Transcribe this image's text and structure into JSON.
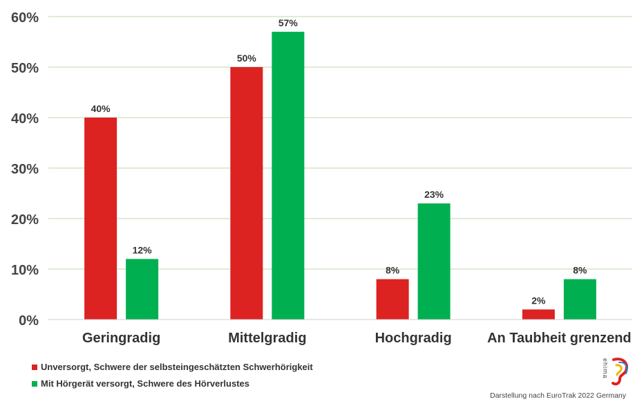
{
  "chart_data": {
    "type": "bar",
    "categories": [
      "Geringradig",
      "Mittelgradig",
      "Hochgradig",
      "An Taubheit grenzend"
    ],
    "series": [
      {
        "name": "Unversorgt, Schwere der selbsteingeschätzten Schwerhörigkeit",
        "values": [
          40,
          50,
          8,
          2
        ],
        "color": "#dd2222"
      },
      {
        "name": "Mit Hörgerät versorgt, Schwere des Hörverlustes",
        "values": [
          12,
          57,
          23,
          8
        ],
        "color": "#00b050"
      }
    ],
    "data_labels": [
      [
        "40%",
        "50%",
        "8%",
        "2%"
      ],
      [
        "12%",
        "57%",
        "23%",
        "8%"
      ]
    ],
    "yticks": [
      0,
      10,
      20,
      30,
      40,
      50,
      60
    ],
    "ytick_labels": [
      "0%",
      "10%",
      "20%",
      "30%",
      "40%",
      "50%",
      "60%"
    ],
    "ylim": [
      0,
      60
    ],
    "grid": true,
    "grid_color": "#bcd9a8",
    "legend_position": "bottom-left"
  },
  "source_note": "Darstellung nach EuroTrak 2022 Germany",
  "logo": {
    "text": "ehima",
    "icon": "ear-logo-icon"
  }
}
